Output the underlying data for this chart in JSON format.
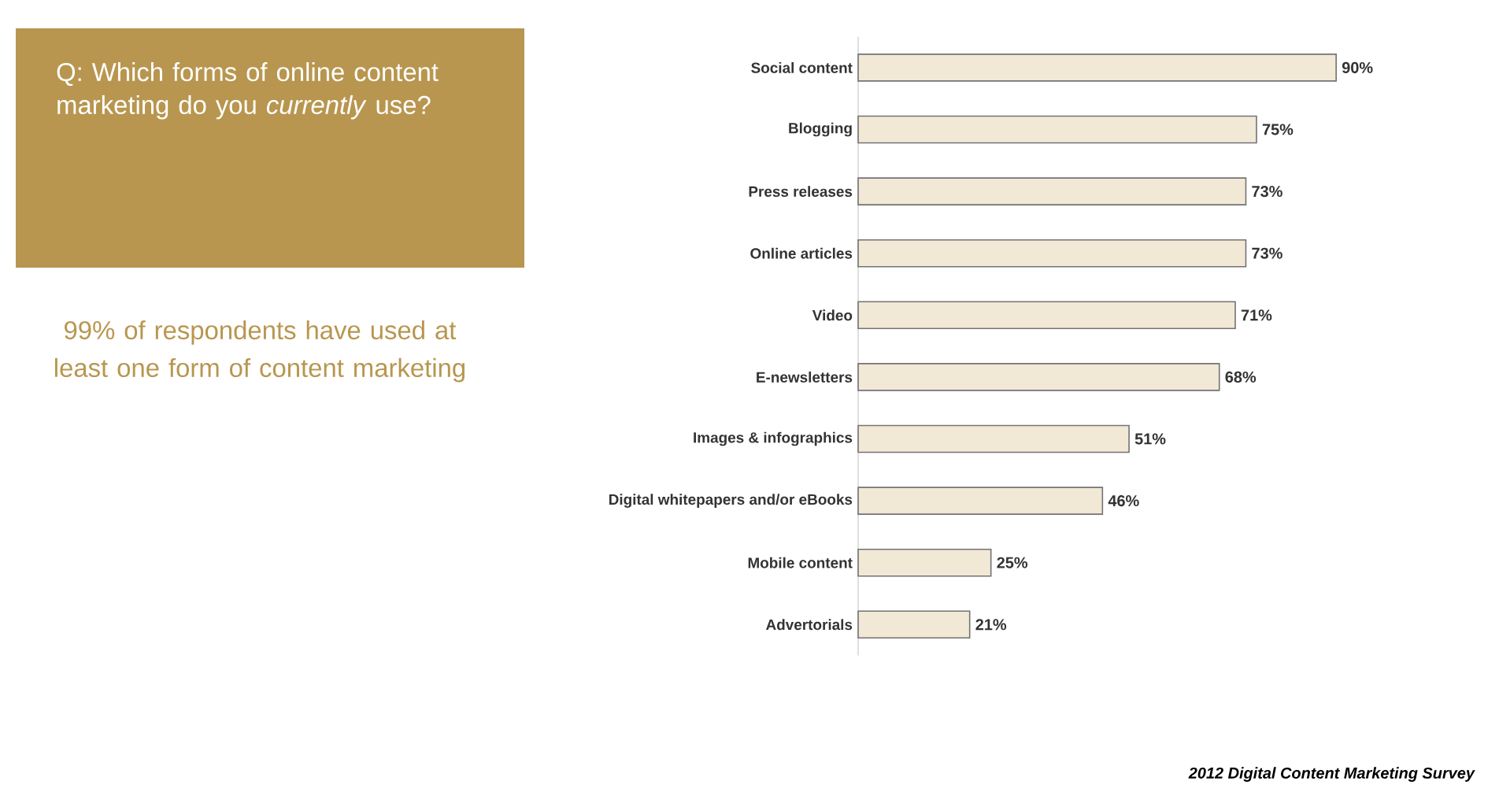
{
  "chart_data": {
    "type": "bar",
    "orientation": "horizontal",
    "title": "Q: Which forms of online content marketing do you *currently* use?",
    "subtitle": "99% of respondents have used at least one form of content marketing",
    "annotations": [
      "2012 Digital Content Marketing Survey"
    ],
    "categories": [
      "Social content",
      "Blogging",
      "Press releases",
      "Online articles",
      "Video",
      "E-newsletters",
      "Images & infographics",
      "Digital whitepapers and/or eBooks",
      "Mobile content",
      "Advertorials"
    ],
    "values": [
      90,
      75,
      73,
      73,
      71,
      68,
      51,
      46,
      25,
      21
    ],
    "value_labels": [
      "90%",
      "75%",
      "73%",
      "73%",
      "71%",
      "68%",
      "51%",
      "46%",
      "25%",
      "21%"
    ],
    "color": "#f2e8d6"
  }
}
